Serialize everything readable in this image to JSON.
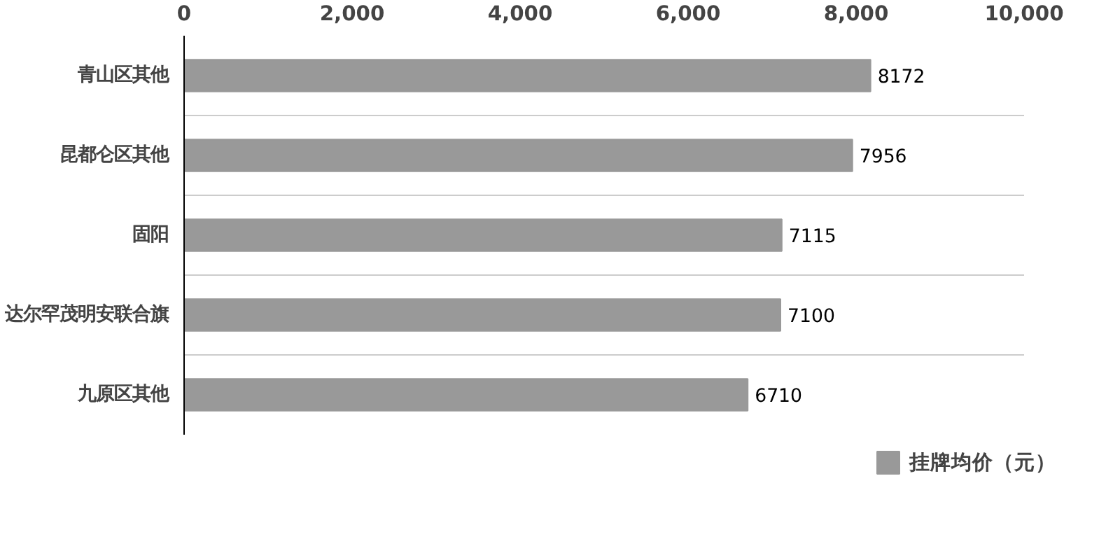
{
  "chart_data": {
    "type": "bar",
    "orientation": "horizontal",
    "categories": [
      "青山区其他",
      "昆都仑区其他",
      "固阳",
      "达尔罕茂明安联合旗",
      "九原区其他"
    ],
    "series": [
      {
        "name": "挂牌均价（元）",
        "color": "#999999",
        "values": [
          8172,
          7956,
          7115,
          7100,
          6710
        ]
      }
    ],
    "xlim": [
      0,
      10000
    ],
    "xticks": [
      0,
      {
        "value": 2000,
        "label": "2,000"
      },
      {
        "value": 4000,
        "label": "4,000"
      },
      {
        "value": 6000,
        "label": "6,000"
      },
      {
        "value": 8000,
        "label": "8,000"
      },
      {
        "value": 10000,
        "label": "10,000"
      }
    ],
    "data_labels": true,
    "grid": "y",
    "legend": "bottom"
  }
}
